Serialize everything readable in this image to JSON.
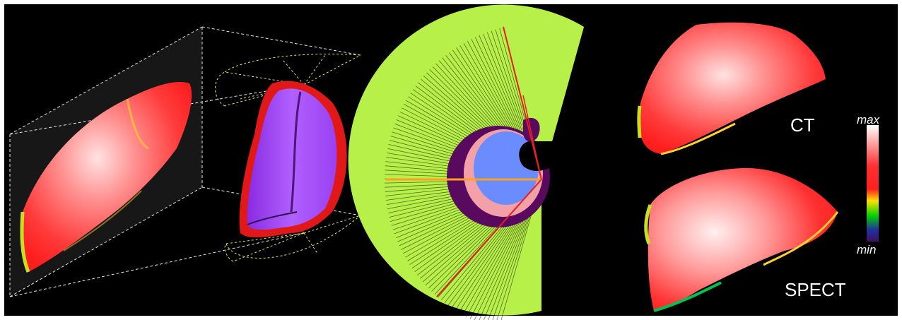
{
  "labels": {
    "ct": "CT",
    "spect": "SPECT",
    "colorbar_max": "max",
    "colorbar_min": "min"
  },
  "colors": {
    "background": "#000000",
    "heat_red": "#ff2a2a",
    "heat_light": "#ffd6d6",
    "volume_purple": "#a23cf0",
    "fan_green": "#b8f04a",
    "mask_pink": "#f4a0a8",
    "mask_blue": "#6a8cff",
    "mask_dark": "#5a0a5e",
    "ray_red": "#e02020",
    "ray_orange": "#ffa020",
    "guide_yellow": "#f0e04a"
  },
  "colorbar_stops": [
    "#ffffff",
    "#ff3030",
    "#ffe000",
    "#00d000",
    "#2030a0",
    "#401060"
  ]
}
